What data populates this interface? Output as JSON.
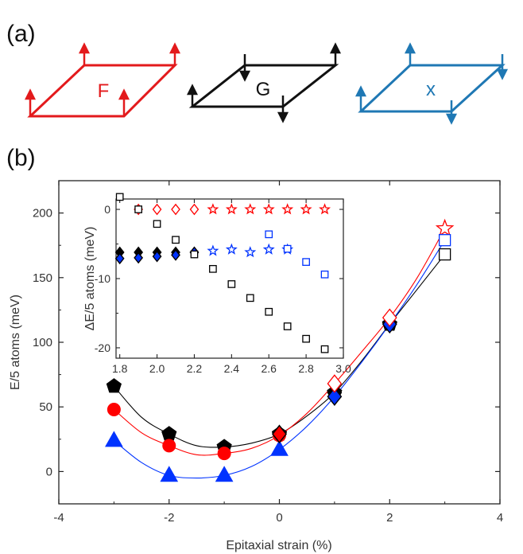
{
  "panel_labels": {
    "a": "(a)",
    "b": "(b)"
  },
  "orderings": [
    {
      "name": "F",
      "color": "#e31a1c"
    },
    {
      "name": "G",
      "color": "#111111"
    },
    {
      "name": "x",
      "color": "#1f78b4"
    }
  ],
  "chart_data": [
    {
      "id": "main",
      "type": "scatter",
      "title": "",
      "xlabel": "Epitaxial strain (%)",
      "ylabel": "E/5 atoms (meV)",
      "xlim": [
        -4,
        4
      ],
      "ylim": [
        -25,
        225
      ],
      "xticks": [
        -4,
        -2,
        0,
        2,
        4
      ],
      "yticks": [
        0,
        50,
        100,
        150,
        200
      ],
      "series": [
        {
          "name": "G (black pentagon)",
          "color": "#000000",
          "marker": "pentagon",
          "filled": true,
          "x": [
            -3,
            -2,
            -1,
            0,
            1,
            2
          ],
          "y": [
            66,
            29,
            19,
            29,
            61,
            114
          ]
        },
        {
          "name": "F (red circle)",
          "color": "#ff0000",
          "marker": "circle",
          "filled": true,
          "x": [
            -3,
            -2,
            -1,
            0
          ],
          "y": [
            48,
            20,
            14,
            28
          ]
        },
        {
          "name": "x (blue triangle)",
          "color": "#0033ff",
          "marker": "triangle",
          "filled": true,
          "x": [
            -3,
            -2,
            -1,
            0
          ],
          "y": [
            24,
            -3,
            -3,
            17
          ]
        },
        {
          "name": "G diamond",
          "color": "#000000",
          "marker": "diamond",
          "filled": true,
          "x": [
            0,
            1,
            2
          ],
          "y": [
            29,
            61,
            115
          ]
        },
        {
          "name": "F diamond",
          "color": "#ff0000",
          "marker": "diamond",
          "filled": true,
          "x": [
            0
          ],
          "y": [
            29
          ]
        },
        {
          "name": "x diamond",
          "color": "#0033ff",
          "marker": "diamond",
          "filled": true,
          "x": [
            1,
            2
          ],
          "y": [
            58,
            114
          ]
        },
        {
          "name": "F open diamond",
          "color": "#ff0000",
          "marker": "diamond",
          "filled": false,
          "x": [
            1,
            2
          ],
          "y": [
            68,
            119
          ]
        },
        {
          "name": "F open star",
          "color": "#ff0000",
          "marker": "star",
          "filled": false,
          "x": [
            3
          ],
          "y": [
            188
          ]
        },
        {
          "name": "x open square",
          "color": "#0033ff",
          "marker": "square",
          "filled": false,
          "x": [
            3
          ],
          "y": [
            179
          ]
        },
        {
          "name": "G open square",
          "color": "#000000",
          "marker": "square",
          "filled": false,
          "x": [
            3
          ],
          "y": [
            168
          ]
        }
      ],
      "fit_curves": [
        {
          "color": "#000000",
          "x": [
            -3,
            -2.5,
            -2,
            -1.5,
            -1,
            -0.5,
            0,
            0.5,
            1,
            1.5,
            2,
            2.5,
            3
          ],
          "y": [
            66,
            42,
            29,
            20,
            19,
            22,
            29,
            43,
            61,
            86,
            114,
            141,
            168
          ]
        },
        {
          "color": "#ff0000",
          "x": [
            -3,
            -2.5,
            -2,
            -1.5,
            -1,
            -0.5,
            0,
            0.5,
            1,
            1.5,
            2,
            2.5,
            3
          ],
          "y": [
            48,
            30,
            20,
            13,
            14,
            18,
            28,
            45,
            68,
            93,
            119,
            150,
            188
          ]
        },
        {
          "color": "#0033ff",
          "x": [
            -3,
            -2.5,
            -2,
            -1.5,
            -1,
            -0.5,
            0,
            0.5,
            1,
            1.5,
            2,
            2.5,
            3
          ],
          "y": [
            24,
            7,
            -3,
            -5,
            -3,
            4,
            17,
            35,
            58,
            85,
            114,
            145,
            179
          ]
        }
      ]
    },
    {
      "id": "inset",
      "type": "scatter",
      "title": "",
      "xlabel": "",
      "ylabel": "ΔE/5 atoms (meV)",
      "xlim": [
        1.78,
        3.0
      ],
      "ylim": [
        -21.5,
        1.5
      ],
      "xticks": [
        1.8,
        2.0,
        2.2,
        2.4,
        2.6,
        2.8,
        3.0
      ],
      "xtick_labels": [
        "1.8",
        "2.0",
        "2.2",
        "2.4",
        "2.6",
        "2.8",
        "3.0"
      ],
      "yticks": [
        0,
        -10,
        -20
      ],
      "ytick_labels": [
        "0",
        "-10",
        "-20"
      ],
      "series": [
        {
          "name": "F open diamond",
          "color": "#ff0000",
          "marker": "diamond",
          "filled": false,
          "x": [
            1.9,
            2.0,
            2.1,
            2.2
          ],
          "y": [
            0,
            0,
            0,
            0
          ]
        },
        {
          "name": "F open star",
          "color": "#ff0000",
          "marker": "star",
          "filled": false,
          "x": [
            2.3,
            2.4,
            2.5,
            2.6,
            2.7,
            2.8,
            2.9
          ],
          "y": [
            0,
            0,
            0,
            0,
            0,
            0,
            0
          ]
        },
        {
          "name": "G filled diamond",
          "color": "#000000",
          "marker": "diamond",
          "filled": true,
          "x": [
            1.8,
            1.9,
            2.0,
            2.1,
            2.2
          ],
          "y": [
            -6.2,
            -6.2,
            -6.2,
            -6.2,
            -6.2
          ]
        },
        {
          "name": "x filled diamond",
          "color": "#0033ff",
          "marker": "diamond",
          "filled": true,
          "x": [
            1.8,
            1.9,
            2.0,
            2.1,
            2.2
          ],
          "y": [
            -7.1,
            -7.0,
            -6.8,
            -6.6,
            -6.2
          ]
        },
        {
          "name": "x open star",
          "color": "#0033ff",
          "marker": "star",
          "filled": false,
          "x": [
            2.3,
            2.4,
            2.5,
            2.6,
            2.7
          ],
          "y": [
            -6.0,
            -5.8,
            -6.2,
            -5.8,
            -5.8
          ]
        },
        {
          "name": "x open square",
          "color": "#0033ff",
          "marker": "square",
          "filled": false,
          "x": [
            2.6,
            2.7,
            2.8,
            2.9
          ],
          "y": [
            -3.6,
            -5.7,
            -7.6,
            -9.4
          ]
        },
        {
          "name": "G open square",
          "color": "#000000",
          "marker": "square",
          "filled": false,
          "x": [
            1.8,
            1.9,
            2.0,
            2.1,
            2.2,
            2.3,
            2.4,
            2.5,
            2.6,
            2.7,
            2.8,
            2.9
          ],
          "y": [
            1.8,
            0,
            -2.1,
            -4.4,
            -6.5,
            -8.6,
            -10.8,
            -12.8,
            -14.8,
            -16.9,
            -18.7,
            -20.2
          ]
        }
      ]
    }
  ]
}
